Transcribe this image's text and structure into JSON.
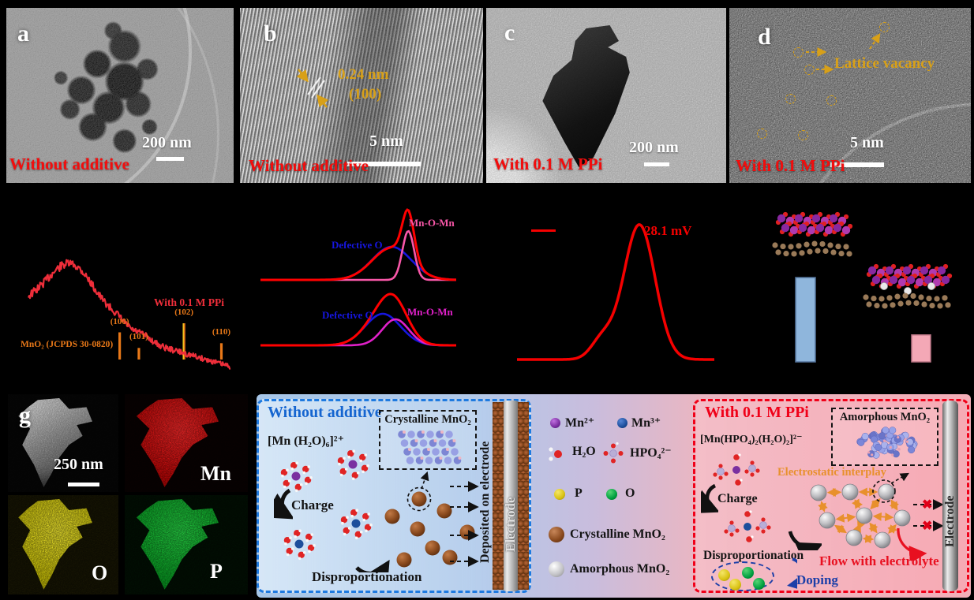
{
  "tem_panels": [
    {
      "label": "a",
      "condition": "Without additive",
      "scale": "200 nm"
    },
    {
      "label": "b",
      "condition": "Without additive",
      "scale": "5 nm",
      "d_spacing": "0.24 nm",
      "plane": "(100)"
    },
    {
      "label": "c",
      "condition": "With 0.1 M PPi",
      "scale": "200 nm"
    },
    {
      "label": "d",
      "condition": "With 0.1 M PPi",
      "scale": "5 nm",
      "annotation": "Lattice vacancy"
    }
  ],
  "chart_data": [
    {
      "id": "xrd",
      "type": "line",
      "series": [
        {
          "name": "With 0.1 M PPi",
          "color": "#ee2e3a"
        }
      ],
      "x_range_2theta": [
        10,
        70
      ],
      "broad_hump_2theta": 23,
      "reference_label": "MnO₂ (JCPDS 30-0820)",
      "reference_color": "#e87818",
      "ref_peaks": [
        {
          "hkl": "(100)",
          "two_theta": 37.1,
          "rel_intensity": 0.75
        },
        {
          "hkl": "(101)",
          "two_theta": 42.8,
          "rel_intensity": 0.32
        },
        {
          "hkl": "(102)",
          "two_theta": 56.2,
          "rel_intensity": 1.0
        },
        {
          "hkl": "(110)",
          "two_theta": 67.3,
          "rel_intensity": 0.45
        }
      ]
    },
    {
      "id": "xps-o1s",
      "type": "area",
      "subpanels": [
        {
          "position": "top",
          "envelope_color": "#ff0000",
          "peaks": [
            {
              "name": "Defective O",
              "color": "#1616e0",
              "center": 0.67,
              "width": 0.1,
              "amp": 42
            },
            {
              "name": "Mn-O-Mn",
              "color": "#f857a8",
              "center": 0.755,
              "width": 0.03,
              "amp": 62
            }
          ]
        },
        {
          "position": "bottom",
          "envelope_color": "#ff0000",
          "peaks": [
            {
              "name": "Defective O",
              "color": "#1616e0",
              "center": 0.625,
              "width": 0.09,
              "amp": 40
            },
            {
              "name": "Mn-O-Mn",
              "color": "#e020c8",
              "center": 0.69,
              "width": 0.068,
              "amp": 33
            }
          ]
        }
      ]
    },
    {
      "id": "zeta",
      "type": "line",
      "color": "#f50000",
      "annotation": "28.1 mV",
      "peak_value_mV": 28.1,
      "main_peak": {
        "center": 0.62,
        "sigma": 0.08,
        "amp": 171
      },
      "shoulder": {
        "center": 0.432,
        "sigma": 0.056,
        "amp": 25
      },
      "legend_line_color": "#f50000"
    },
    {
      "id": "adsorption-models",
      "type": "bar",
      "bars": [
        {
          "name": "crystalline MnO₂ on carbon",
          "color": "#8fb6dc",
          "edge": "#54749c",
          "rel_height": 1.0
        },
        {
          "name": "amorphous MnO₂ on carbon",
          "color": "#f4a8b6",
          "edge": "#b87484",
          "rel_height": 0.32
        }
      ]
    }
  ],
  "eds_panel": {
    "label": "g",
    "scale": "250 nm",
    "maps": [
      {
        "element": "Mn",
        "color": "#e80f0f"
      },
      {
        "element": "O",
        "color": "#ddd400"
      },
      {
        "element": "P",
        "color": "#0fbe28"
      }
    ]
  },
  "schematic": {
    "left": {
      "title": "Without additive",
      "title_color": "#1565d0",
      "complex": "[Mn (H₂O)₆]²⁺",
      "charge": "Charge",
      "disproportionation": "Disproportionation",
      "crystal_box": "Crystalline MnO₂",
      "deposited": "Deposited on electrode",
      "electrode": "Electrode"
    },
    "legend": [
      {
        "label": "Mn²⁺"
      },
      {
        "label": "Mn³⁺"
      },
      {
        "label": "H₂O"
      },
      {
        "label": "HPO₄²⁻"
      },
      {
        "label": "P"
      },
      {
        "label": "O"
      },
      {
        "label": "Crystalline MnO₂"
      },
      {
        "label": "Amorphous MnO₂"
      }
    ],
    "right": {
      "title": "With 0.1 M PPi",
      "title_color": "#f00018",
      "complex": "[Mn(HPO₄)₂(H₂O)₂]²⁻",
      "charge": "Charge",
      "disproportionation": "Disproportionation",
      "doping": "Doping",
      "interplay": "Electrostatic interplay",
      "amorphous_box": "Amorphous MnO₂",
      "flow": "Flow with electrolyte",
      "electrode": "Electrode"
    }
  }
}
